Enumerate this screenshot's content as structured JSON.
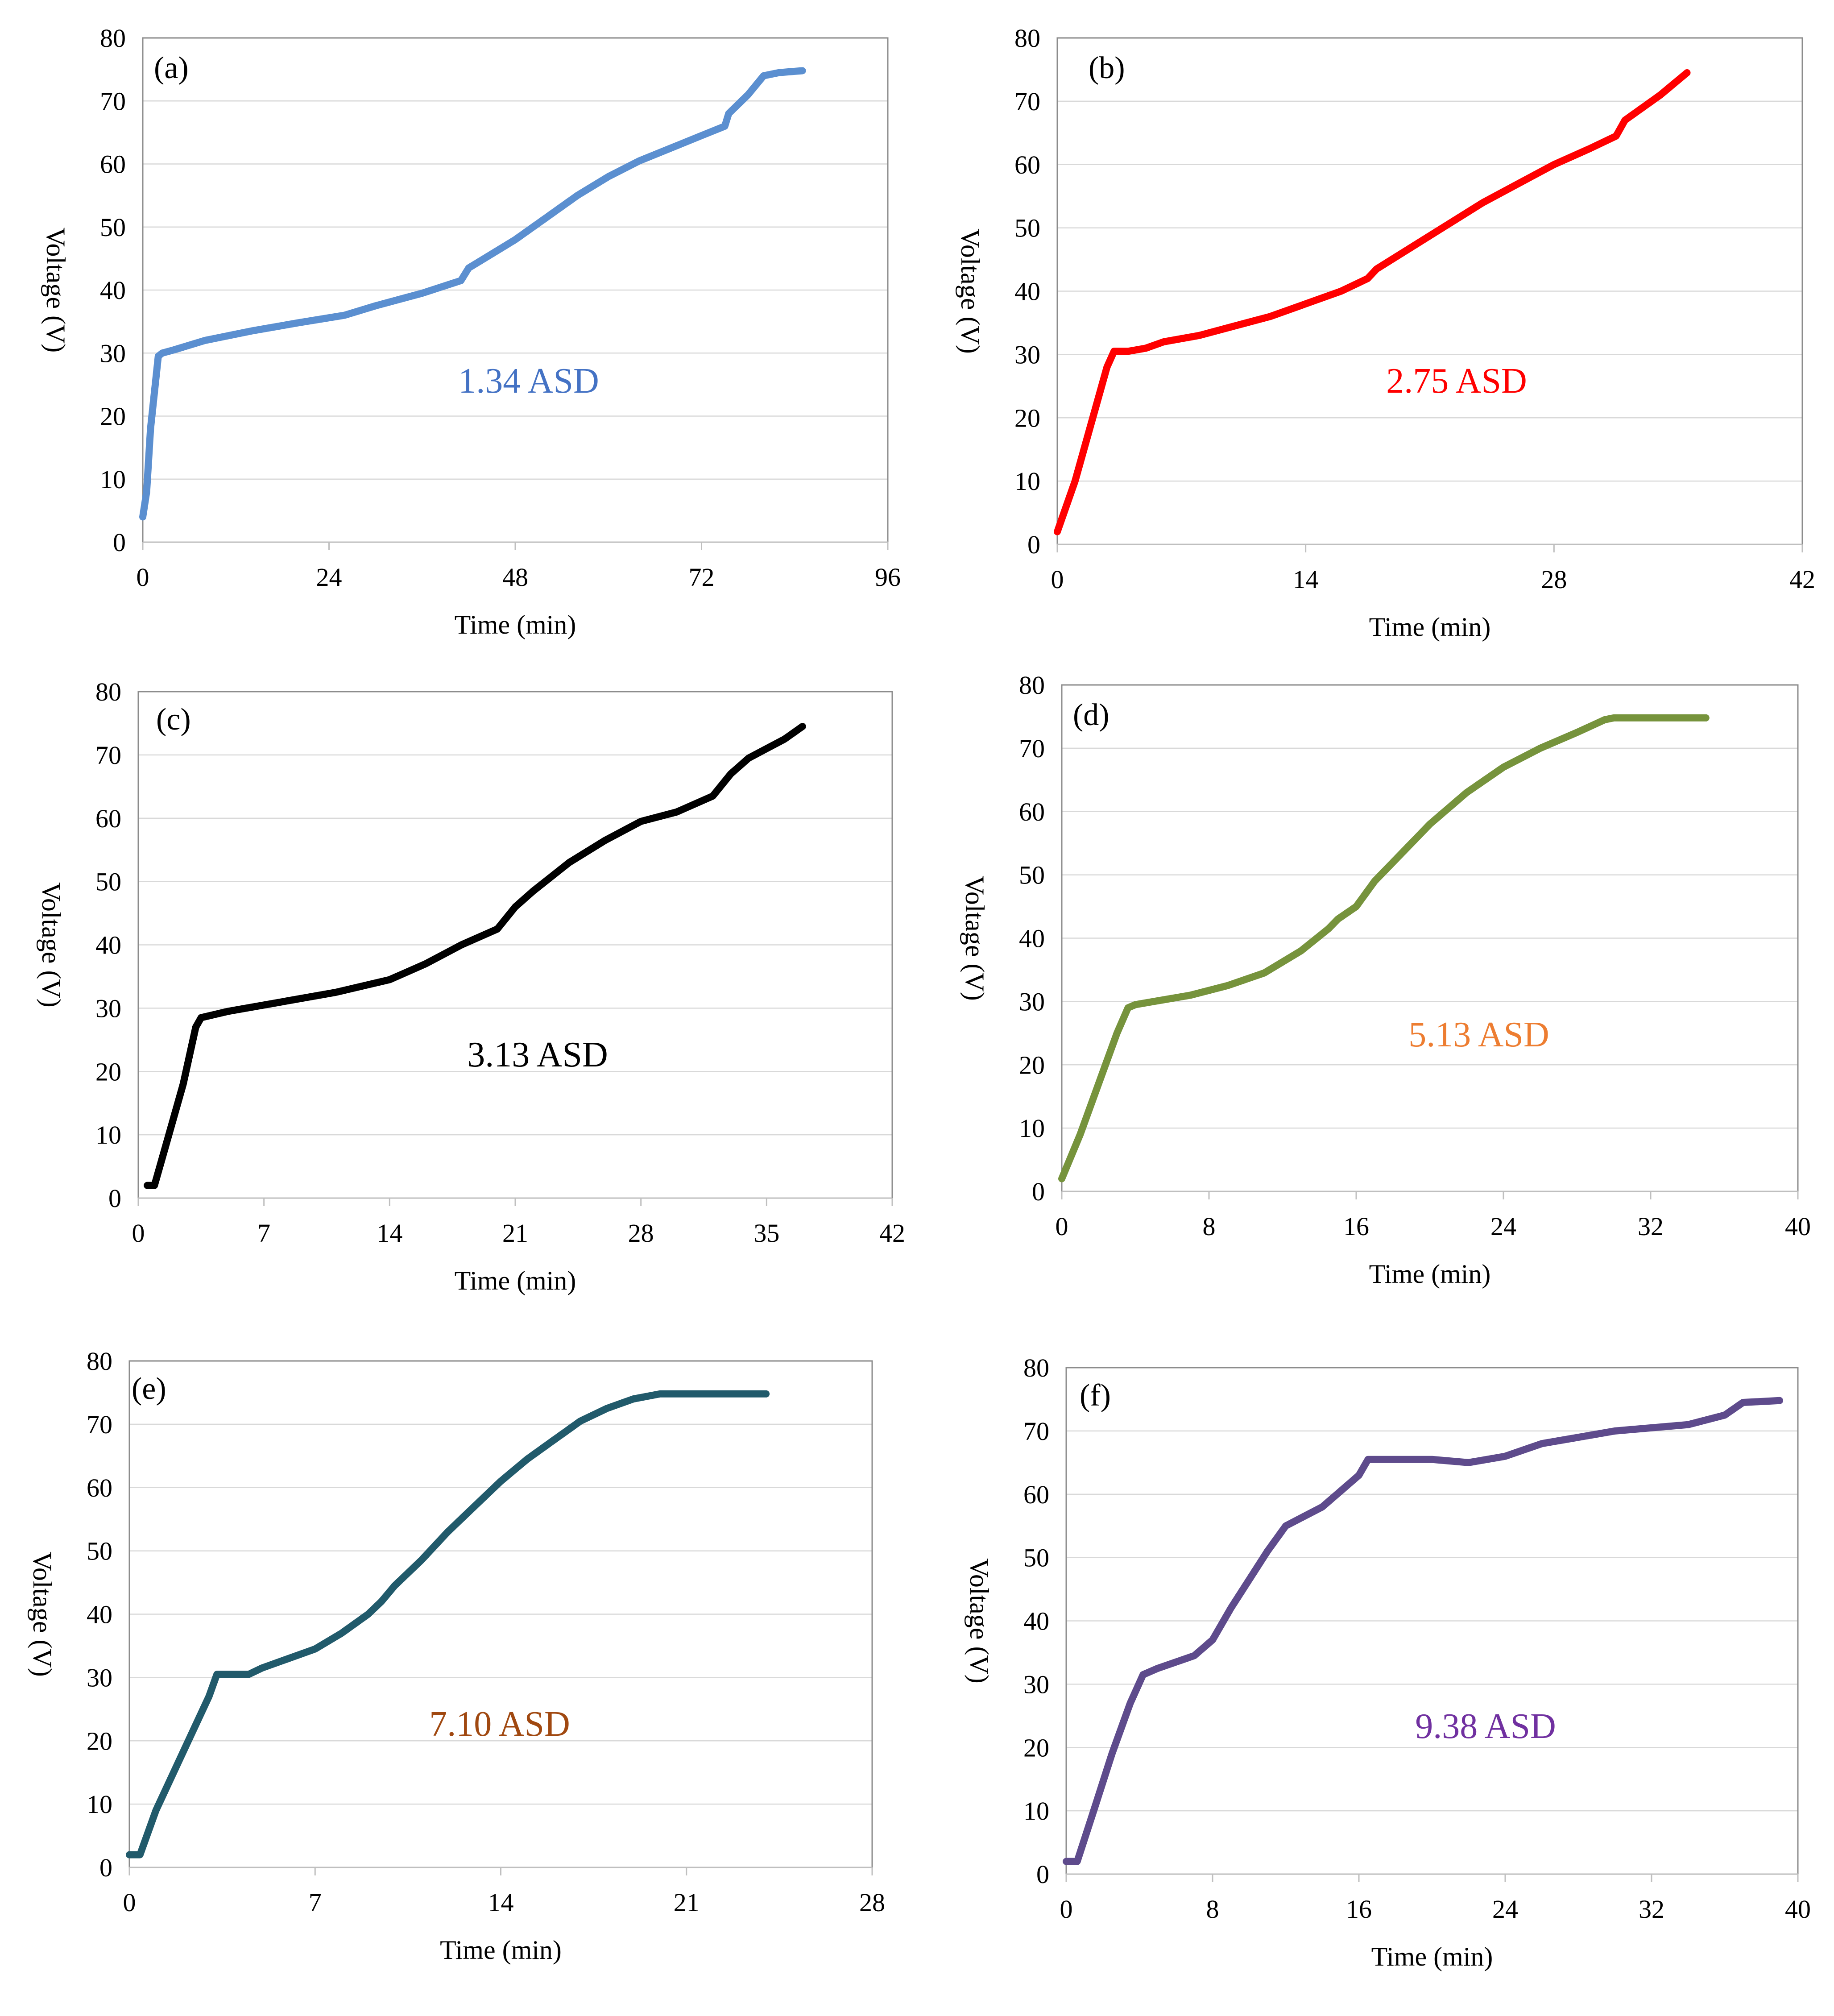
{
  "chart_data": [
    {
      "type": "line",
      "panel_label": "(a)",
      "annotation": "1.34 ASD",
      "annotation_color": "#4472C4",
      "color": "#5B8FD0",
      "xlabel": "Time (min)",
      "ylabel": "Voltage (V)",
      "xlim": [
        0,
        96
      ],
      "ylim": [
        0,
        80
      ],
      "xticks": [
        0,
        24,
        48,
        72,
        96
      ],
      "yticks": [
        0,
        10,
        20,
        30,
        40,
        50,
        60,
        70,
        80
      ],
      "grid": "horizontal",
      "series": [
        {
          "name": "1.34 ASD",
          "x": [
            0,
            0.5,
            1,
            2,
            2.5,
            4,
            8,
            14,
            20,
            26,
            30,
            36,
            41,
            42,
            44,
            48,
            52,
            56,
            60,
            64,
            68,
            72,
            75,
            75.5,
            78,
            80,
            82,
            85
          ],
          "y": [
            4,
            8,
            18,
            29.5,
            30,
            30.5,
            32,
            33.5,
            34.8,
            36,
            37.5,
            39.5,
            41.5,
            43.5,
            45,
            48,
            51.5,
            55,
            58,
            60.5,
            62.5,
            64.5,
            66,
            68,
            71,
            74,
            74.5,
            74.8
          ]
        }
      ]
    },
    {
      "type": "line",
      "panel_label": "(b)",
      "annotation": "2.75 ASD",
      "annotation_color": "#FF0000",
      "color": "#FF0000",
      "xlabel": "Time (min)",
      "ylabel": "Voltage (V)",
      "xlim": [
        0,
        42
      ],
      "ylim": [
        0,
        80
      ],
      "xticks": [
        0,
        14,
        28,
        42
      ],
      "yticks": [
        0,
        10,
        20,
        30,
        40,
        50,
        60,
        70,
        80
      ],
      "grid": "horizontal",
      "series": [
        {
          "name": "2.75 ASD",
          "x": [
            0,
            1,
            2,
            2.8,
            3.2,
            4,
            5,
            6,
            8,
            10,
            12,
            14,
            16,
            17.5,
            18,
            20,
            22,
            24,
            26,
            28,
            30,
            31.5,
            32,
            34,
            35.5
          ],
          "y": [
            2,
            10,
            20,
            28,
            30.5,
            30.5,
            31,
            32,
            33,
            34.5,
            36,
            38,
            40,
            42,
            43.5,
            47,
            50.5,
            54,
            57,
            60,
            62.5,
            64.5,
            67,
            71,
            74.5
          ]
        }
      ]
    },
    {
      "type": "line",
      "panel_label": "(c)",
      "annotation": "3.13 ASD",
      "annotation_color": "#000000",
      "color": "#000000",
      "xlabel": "Time (min)",
      "ylabel": "Voltage (V)",
      "xlim": [
        0,
        42
      ],
      "ylim": [
        0,
        80
      ],
      "xticks": [
        0,
        7,
        14,
        21,
        28,
        35,
        42
      ],
      "yticks": [
        0,
        10,
        20,
        30,
        40,
        50,
        60,
        70,
        80
      ],
      "grid": "horizontal",
      "series": [
        {
          "name": "3.13 ASD",
          "x": [
            0.5,
            0.9,
            1.5,
            2.5,
            3.2,
            3.5,
            5,
            8,
            11,
            14,
            16,
            18,
            20,
            21,
            22,
            24,
            26,
            28,
            30,
            32,
            33,
            34,
            35,
            36,
            37
          ],
          "y": [
            2,
            2,
            8,
            18,
            27,
            28.5,
            29.5,
            31,
            32.5,
            34.5,
            37,
            40,
            42.5,
            46,
            48.5,
            53,
            56.5,
            59.5,
            61,
            63.5,
            67,
            69.5,
            71,
            72.5,
            74.5
          ]
        }
      ]
    },
    {
      "type": "line",
      "panel_label": "(d)",
      "annotation": "5.13 ASD",
      "annotation_color": "#ED7D31",
      "color": "#76933C",
      "xlabel": "Time (min)",
      "ylabel": "Voltage (V)",
      "xlim": [
        0,
        40
      ],
      "ylim": [
        0,
        80
      ],
      "xticks": [
        0,
        8,
        16,
        24,
        32,
        40
      ],
      "yticks": [
        0,
        10,
        20,
        30,
        40,
        50,
        60,
        70,
        80
      ],
      "grid": "horizontal",
      "series": [
        {
          "name": "5.13 ASD",
          "x": [
            0,
            1,
            2,
            3,
            3.6,
            4,
            5,
            7,
            9,
            11,
            13,
            14.5,
            15,
            16,
            17,
            18,
            19,
            20,
            22,
            24,
            26,
            28,
            29.5,
            30,
            32,
            35
          ],
          "y": [
            2,
            9,
            17,
            25,
            29,
            29.5,
            30,
            31,
            32.5,
            34.5,
            38,
            41.5,
            43,
            45,
            49,
            52,
            55,
            58,
            63,
            67,
            70,
            72.5,
            74.5,
            74.8,
            74.8,
            74.8
          ]
        }
      ]
    },
    {
      "type": "line",
      "panel_label": "(e)",
      "annotation": "7.10 ASD",
      "annotation_color": "#A04810",
      "color": "#215A6B",
      "xlabel": "Time (min)",
      "ylabel": "Voltage (V)",
      "xlim": [
        0,
        28
      ],
      "ylim": [
        0,
        80
      ],
      "xticks": [
        0,
        7,
        14,
        21,
        28
      ],
      "yticks": [
        0,
        10,
        20,
        30,
        40,
        50,
        60,
        70,
        80
      ],
      "grid": "horizontal",
      "series": [
        {
          "name": "7.10 ASD",
          "x": [
            0,
            0.4,
            1,
            2,
            3,
            3.3,
            3.6,
            4.5,
            5,
            6,
            7,
            8,
            9,
            9.5,
            10,
            11,
            12,
            13,
            14,
            15,
            16,
            17,
            18,
            19,
            20,
            20.5,
            22,
            24
          ],
          "y": [
            2,
            2,
            9,
            18,
            27,
            30.5,
            30.5,
            30.5,
            31.5,
            33,
            34.5,
            37,
            40,
            42,
            44.5,
            48.5,
            53,
            57,
            61,
            64.5,
            67.5,
            70.5,
            72.5,
            74,
            74.8,
            74.8,
            74.8,
            74.8
          ]
        }
      ]
    },
    {
      "type": "line",
      "panel_label": "(f)",
      "annotation": "9.38 ASD",
      "annotation_color": "#7030A0",
      "color": "#5E4B8C",
      "xlabel": "Time (min)",
      "ylabel": "Voltage (V)",
      "xlim": [
        0,
        40
      ],
      "ylim": [
        0,
        80
      ],
      "xticks": [
        0,
        8,
        16,
        24,
        32,
        40
      ],
      "yticks": [
        0,
        10,
        20,
        30,
        40,
        50,
        60,
        70,
        80
      ],
      "grid": "horizontal",
      "series": [
        {
          "name": "9.38 ASD",
          "x": [
            0,
            0.6,
            1.5,
            2.5,
            3.5,
            4.2,
            5,
            6,
            7,
            8,
            9,
            10,
            11,
            12,
            13,
            14,
            15,
            16,
            16.5,
            18,
            20,
            22,
            24,
            26,
            28,
            30,
            32,
            34,
            36,
            37,
            39
          ],
          "y": [
            2,
            2,
            10,
            19,
            27,
            31.5,
            32.5,
            33.5,
            34.5,
            37,
            42,
            46.5,
            51,
            55,
            56.5,
            58,
            60.5,
            63,
            65.5,
            65.5,
            65.5,
            65,
            66,
            68,
            69,
            70,
            70.5,
            71,
            72.5,
            74.5,
            74.8
          ]
        }
      ]
    }
  ]
}
